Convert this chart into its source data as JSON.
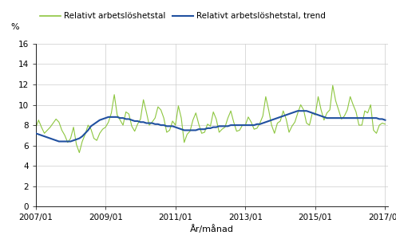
{
  "title": "",
  "ylabel": "%",
  "xlabel": "År/månad",
  "ylim": [
    0,
    16
  ],
  "yticks": [
    0,
    2,
    4,
    6,
    8,
    10,
    12,
    14,
    16
  ],
  "xtick_labels": [
    "2007/01",
    "2009/01",
    "2011/01",
    "2013/01",
    "2015/01",
    "2017/01"
  ],
  "legend1": "Relativt arbetslöshetstal",
  "legend2": "Relativt arbetslöshetstal, trend",
  "line_color": "#8DC63F",
  "trend_color": "#2050A0",
  "background_color": "#ffffff",
  "raw_values": [
    7.7,
    8.5,
    7.8,
    7.2,
    7.5,
    7.8,
    8.2,
    8.6,
    8.3,
    7.5,
    7.0,
    6.3,
    6.7,
    7.8,
    6.1,
    5.3,
    6.4,
    7.1,
    8.0,
    7.6,
    6.7,
    6.5,
    7.2,
    7.6,
    7.8,
    8.3,
    9.2,
    11.0,
    9.0,
    8.5,
    8.0,
    9.3,
    9.1,
    7.9,
    7.4,
    8.1,
    8.6,
    10.5,
    9.3,
    8.0,
    8.3,
    8.7,
    9.8,
    9.5,
    8.7,
    7.3,
    7.5,
    8.4,
    8.0,
    9.9,
    8.7,
    6.3,
    7.1,
    7.4,
    8.5,
    9.2,
    8.1,
    7.2,
    7.3,
    8.1,
    7.9,
    9.3,
    8.6,
    7.3,
    7.6,
    7.8,
    8.7,
    9.4,
    8.3,
    7.4,
    7.5,
    8.0,
    8.0,
    8.8,
    8.3,
    7.6,
    7.7,
    8.2,
    8.9,
    10.8,
    9.5,
    8.0,
    7.2,
    8.2,
    8.4,
    9.4,
    8.6,
    7.3,
    7.9,
    8.3,
    9.2,
    10.0,
    9.5,
    8.2,
    8.0,
    9.2,
    9.0,
    10.8,
    9.5,
    8.5,
    9.2,
    9.5,
    11.9,
    10.4,
    9.5,
    8.6,
    8.9,
    9.5,
    10.8,
    10.0,
    9.3,
    8.0,
    8.0,
    9.4,
    9.2,
    10.0,
    7.5,
    7.2,
    8.0,
    8.2,
    8.1
  ],
  "trend_values": [
    7.2,
    7.1,
    7.0,
    6.9,
    6.8,
    6.7,
    6.6,
    6.5,
    6.4,
    6.4,
    6.4,
    6.4,
    6.4,
    6.5,
    6.6,
    6.7,
    6.9,
    7.2,
    7.5,
    7.9,
    8.1,
    8.3,
    8.5,
    8.6,
    8.7,
    8.8,
    8.8,
    8.8,
    8.8,
    8.7,
    8.7,
    8.6,
    8.6,
    8.5,
    8.4,
    8.4,
    8.3,
    8.3,
    8.2,
    8.2,
    8.2,
    8.1,
    8.1,
    8.0,
    8.0,
    7.9,
    7.9,
    7.9,
    7.8,
    7.7,
    7.6,
    7.5,
    7.5,
    7.5,
    7.5,
    7.5,
    7.6,
    7.6,
    7.6,
    7.7,
    7.7,
    7.8,
    7.8,
    7.9,
    7.9,
    7.9,
    7.9,
    8.0,
    8.0,
    8.0,
    8.0,
    8.0,
    8.0,
    8.0,
    8.0,
    8.0,
    8.1,
    8.1,
    8.2,
    8.3,
    8.4,
    8.5,
    8.6,
    8.7,
    8.8,
    8.9,
    9.0,
    9.1,
    9.2,
    9.3,
    9.4,
    9.4,
    9.4,
    9.4,
    9.3,
    9.2,
    9.1,
    9.0,
    8.9,
    8.8,
    8.7,
    8.7,
    8.7,
    8.7,
    8.7,
    8.7,
    8.7,
    8.7,
    8.7,
    8.7,
    8.7,
    8.7,
    8.7,
    8.7,
    8.7,
    8.7,
    8.7,
    8.7,
    8.6,
    8.6,
    8.5
  ]
}
